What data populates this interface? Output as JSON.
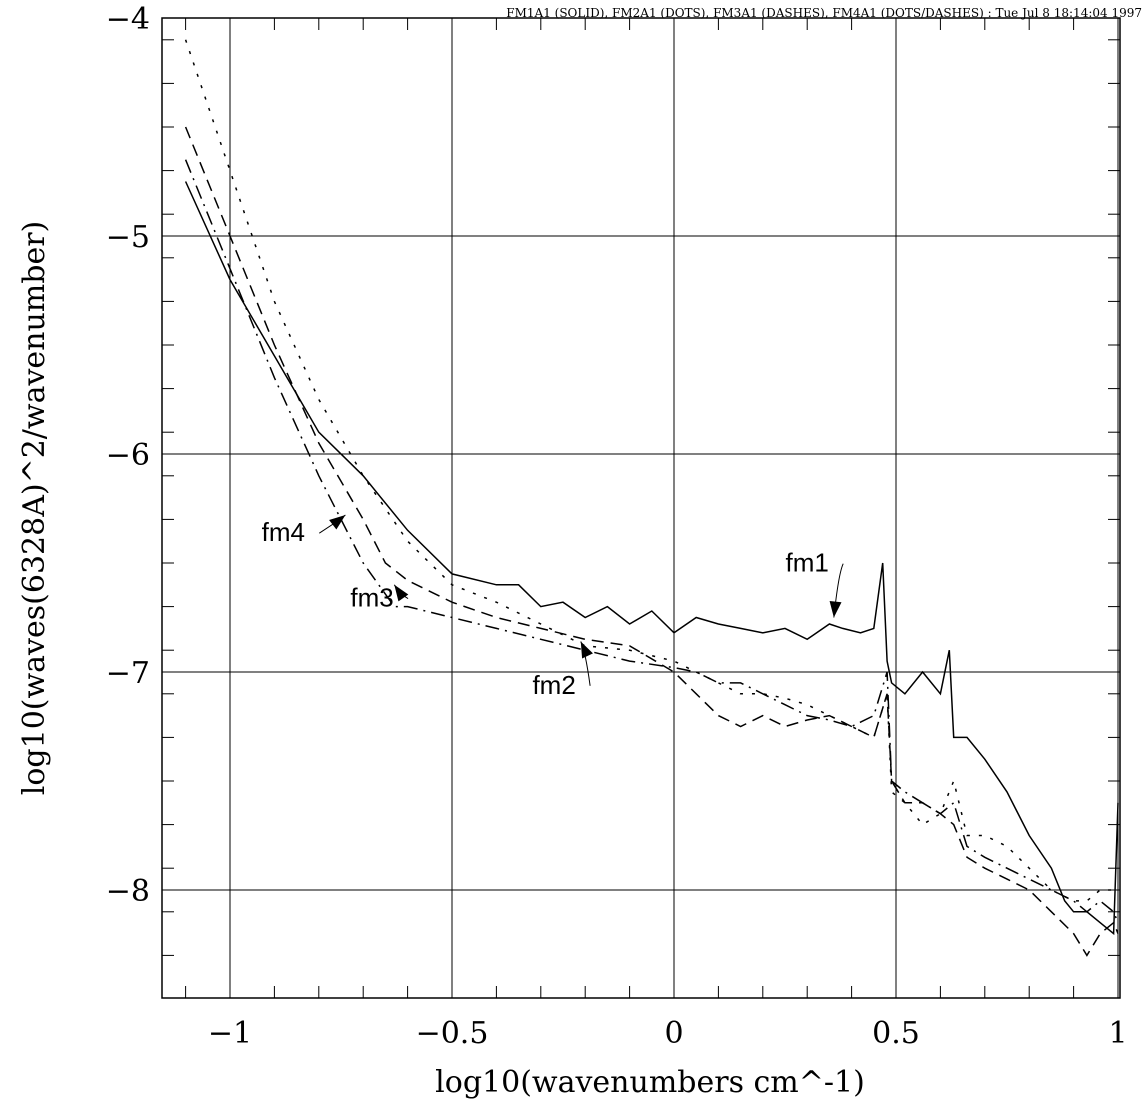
{
  "chart_data": {
    "type": "line",
    "title": "FM1A1 (SOLID), FM2A1 (DOTS), FM3A1 (DASHES), FM4A1 (DOTS/DASHES) : Tue Jul  8 18:14:04 1997",
    "xlabel": "log10(wavenumbers cm^-1)",
    "ylabel": "log10(waves(6328A)^2/wavenumber)",
    "xlim": [
      -1.12,
      1.0
    ],
    "ylim": [
      -8.5,
      -4.0
    ],
    "x_ticks": [
      -1,
      -0.5,
      0,
      0.5,
      1
    ],
    "x_tick_labels": [
      "−1",
      "−0.5",
      "0",
      "0.5",
      "1"
    ],
    "y_ticks": [
      -8,
      -7,
      -6,
      -5,
      -4
    ],
    "y_tick_labels": [
      "−8",
      "−7",
      "−6",
      "−5",
      "−4"
    ],
    "grid": true,
    "series": [
      {
        "name": "fm1",
        "style": "solid",
        "x": [
          -1.1,
          -1.0,
          -0.9,
          -0.8,
          -0.7,
          -0.6,
          -0.5,
          -0.4,
          -0.35,
          -0.3,
          -0.25,
          -0.2,
          -0.15,
          -0.1,
          -0.05,
          0.0,
          0.05,
          0.1,
          0.15,
          0.2,
          0.25,
          0.3,
          0.35,
          0.38,
          0.42,
          0.45,
          0.47,
          0.48,
          0.49,
          0.52,
          0.56,
          0.6,
          0.62,
          0.63,
          0.66,
          0.7,
          0.75,
          0.8,
          0.85,
          0.88,
          0.9,
          0.93,
          0.96,
          0.99,
          1.0
        ],
        "y": [
          -4.75,
          -5.2,
          -5.55,
          -5.9,
          -6.1,
          -6.35,
          -6.55,
          -6.6,
          -6.6,
          -6.7,
          -6.68,
          -6.75,
          -6.7,
          -6.78,
          -6.72,
          -6.82,
          -6.75,
          -6.78,
          -6.8,
          -6.82,
          -6.8,
          -6.85,
          -6.78,
          -6.8,
          -6.82,
          -6.8,
          -6.5,
          -6.95,
          -7.05,
          -7.1,
          -7.0,
          -7.1,
          -6.9,
          -7.3,
          -7.3,
          -7.4,
          -7.55,
          -7.75,
          -7.9,
          -8.05,
          -8.1,
          -8.1,
          -8.15,
          -8.2,
          -7.6
        ]
      },
      {
        "name": "fm2",
        "style": "dots",
        "x": [
          -1.1,
          -1.0,
          -0.9,
          -0.8,
          -0.7,
          -0.6,
          -0.5,
          -0.4,
          -0.3,
          -0.2,
          -0.1,
          0.0,
          0.05,
          0.1,
          0.15,
          0.2,
          0.25,
          0.3,
          0.35,
          0.4,
          0.45,
          0.48,
          0.49,
          0.52,
          0.56,
          0.6,
          0.63,
          0.66,
          0.7,
          0.75,
          0.8,
          0.85,
          0.9,
          0.93,
          0.96,
          0.99,
          1.0
        ],
        "y": [
          -4.1,
          -4.7,
          -5.3,
          -5.75,
          -6.1,
          -6.4,
          -6.6,
          -6.68,
          -6.78,
          -6.88,
          -6.9,
          -6.95,
          -7.0,
          -7.05,
          -7.1,
          -7.1,
          -7.12,
          -7.15,
          -7.2,
          -7.25,
          -7.3,
          -7.1,
          -7.55,
          -7.6,
          -7.7,
          -7.65,
          -7.5,
          -7.75,
          -7.75,
          -7.8,
          -7.9,
          -8.0,
          -8.05,
          -8.05,
          -8.0,
          -8.0,
          -8.0
        ]
      },
      {
        "name": "fm3",
        "style": "dashes",
        "x": [
          -1.1,
          -1.0,
          -0.9,
          -0.8,
          -0.7,
          -0.65,
          -0.6,
          -0.5,
          -0.4,
          -0.3,
          -0.2,
          -0.1,
          0.0,
          0.05,
          0.1,
          0.15,
          0.2,
          0.25,
          0.3,
          0.35,
          0.4,
          0.45,
          0.48,
          0.49,
          0.52,
          0.56,
          0.6,
          0.63,
          0.66,
          0.7,
          0.75,
          0.8,
          0.85,
          0.9,
          0.93,
          0.96,
          0.99,
          1.0
        ],
        "y": [
          -4.5,
          -5.0,
          -5.5,
          -5.95,
          -6.3,
          -6.5,
          -6.58,
          -6.68,
          -6.75,
          -6.8,
          -6.85,
          -6.88,
          -7.0,
          -7.1,
          -7.2,
          -7.25,
          -7.2,
          -7.25,
          -7.22,
          -7.2,
          -7.25,
          -7.3,
          -7.1,
          -7.5,
          -7.6,
          -7.6,
          -7.65,
          -7.7,
          -7.85,
          -7.9,
          -7.95,
          -8.0,
          -8.1,
          -8.2,
          -8.3,
          -8.2,
          -8.15,
          -8.2
        ]
      },
      {
        "name": "fm4",
        "style": "dots/dashes",
        "x": [
          -1.1,
          -1.0,
          -0.9,
          -0.8,
          -0.7,
          -0.63,
          -0.6,
          -0.5,
          -0.4,
          -0.3,
          -0.2,
          -0.1,
          0.0,
          0.05,
          0.1,
          0.15,
          0.2,
          0.25,
          0.3,
          0.35,
          0.4,
          0.45,
          0.48,
          0.49,
          0.52,
          0.56,
          0.6,
          0.63,
          0.66,
          0.7,
          0.75,
          0.8,
          0.85,
          0.9,
          0.93,
          0.96,
          0.99,
          1.0
        ],
        "y": [
          -4.65,
          -5.15,
          -5.65,
          -6.1,
          -6.5,
          -6.7,
          -6.7,
          -6.75,
          -6.8,
          -6.85,
          -6.9,
          -6.95,
          -6.98,
          -7.0,
          -7.05,
          -7.05,
          -7.1,
          -7.15,
          -7.2,
          -7.22,
          -7.25,
          -7.2,
          -7.0,
          -7.5,
          -7.55,
          -7.6,
          -7.65,
          -7.6,
          -7.8,
          -7.85,
          -7.9,
          -7.95,
          -8.0,
          -8.05,
          -8.1,
          -8.05,
          -8.1,
          -8.15
        ]
      }
    ],
    "annotations": [
      {
        "text": "fm1",
        "x": 0.3,
        "y": -6.54,
        "arrow_to": [
          0.36,
          -6.75
        ]
      },
      {
        "text": "fm2",
        "x": -0.27,
        "y": -7.1,
        "arrow_to": [
          -0.21,
          -6.86
        ]
      },
      {
        "text": "fm3",
        "x": -0.68,
        "y": -6.7,
        "arrow_to": [
          -0.63,
          -6.6
        ]
      },
      {
        "text": "fm4",
        "x": -0.88,
        "y": -6.4,
        "arrow_to": [
          -0.74,
          -6.28
        ]
      }
    ]
  }
}
